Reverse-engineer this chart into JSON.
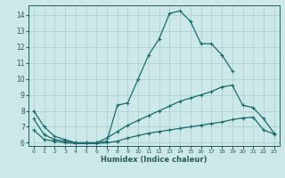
{
  "xlabel": "Humidex (Indice chaleur)",
  "background_color": "#cce8e8",
  "grid_color": "#aacccc",
  "line_color": "#1a6b6b",
  "xlim": [
    -0.5,
    23.5
  ],
  "ylim": [
    5.8,
    14.6
  ],
  "xticks": [
    0,
    1,
    2,
    3,
    4,
    5,
    6,
    7,
    8,
    9,
    10,
    11,
    12,
    13,
    14,
    15,
    16,
    17,
    18,
    19,
    20,
    21,
    22,
    23
  ],
  "yticks": [
    6,
    7,
    8,
    9,
    10,
    11,
    12,
    13,
    14
  ],
  "line1_x": [
    0,
    1,
    2,
    3,
    4,
    5,
    6,
    7,
    8,
    9,
    10,
    11,
    12,
    13,
    14,
    15,
    16,
    17,
    18,
    19
  ],
  "line1_y": [
    8.0,
    7.0,
    6.4,
    6.2,
    6.0,
    6.0,
    6.0,
    6.1,
    8.35,
    8.5,
    10.0,
    11.5,
    12.5,
    14.1,
    14.25,
    13.6,
    12.2,
    12.2,
    11.5,
    10.5
  ],
  "line3_x": [
    0,
    1,
    2,
    3,
    4,
    5,
    6,
    7,
    8,
    9,
    10,
    11,
    12,
    13,
    14,
    15,
    16,
    17,
    18,
    19,
    20,
    21,
    22,
    23
  ],
  "line3_y": [
    7.5,
    6.5,
    6.2,
    6.1,
    6.0,
    6.0,
    6.0,
    6.3,
    6.7,
    7.1,
    7.4,
    7.7,
    8.0,
    8.3,
    8.6,
    8.8,
    9.0,
    9.2,
    9.5,
    9.6,
    8.35,
    8.2,
    7.5,
    6.6
  ],
  "line4_x": [
    0,
    1,
    2,
    3,
    4,
    5,
    6,
    7,
    8,
    9,
    10,
    11,
    12,
    13,
    14,
    15,
    16,
    17,
    18,
    19,
    20,
    21,
    22,
    23
  ],
  "line4_y": [
    6.8,
    6.2,
    6.1,
    6.0,
    5.95,
    5.95,
    5.95,
    6.0,
    6.1,
    6.3,
    6.45,
    6.6,
    6.7,
    6.8,
    6.9,
    7.0,
    7.1,
    7.2,
    7.3,
    7.45,
    7.55,
    7.6,
    6.8,
    6.55
  ]
}
